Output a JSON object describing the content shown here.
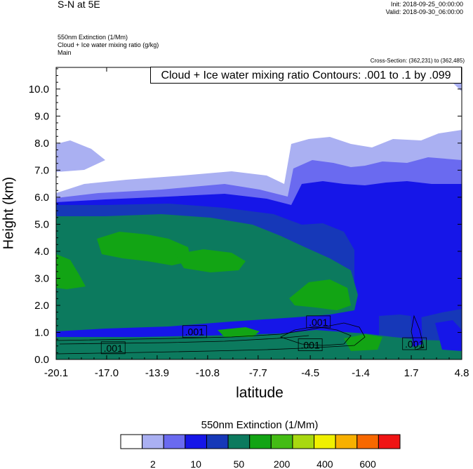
{
  "header": {
    "title": "S-N at 5E",
    "init": "Init: 2018-09-25_00:00:00",
    "valid": "Valid: 2018-09-30_06:00:00",
    "variables": [
      "550nm Extinction   (1/Mm)",
      "Cloud + Ice water mixing ratio   (g/kg)",
      "Main"
    ],
    "cross_section": "Cross-Section: (362,231) to (362,485)",
    "contour_title": "Cloud + Ice water mixing ratio Contours: .001 to .1 by .099"
  },
  "chart_data": {
    "type": "heatmap",
    "title": "S-N at 5E",
    "xlabel": "latitude",
    "ylabel": "Height (km)",
    "xlim": [
      -20.1,
      4.8
    ],
    "ylim": [
      0.0,
      10.8
    ],
    "x_ticks": [
      "-20.1",
      "-17.0",
      "-13.9",
      "-10.8",
      "-7.7",
      "-4.5",
      "-1.4",
      "1.7",
      "4.8"
    ],
    "x_tick_values": [
      -20.1,
      -17.0,
      -13.9,
      -10.8,
      -7.7,
      -4.5,
      -1.4,
      1.7,
      4.8
    ],
    "y_ticks": [
      "0.0",
      "1.0",
      "2.0",
      "3.0",
      "4.0",
      "5.0",
      "6.0",
      "7.0",
      "8.0",
      "9.0",
      "10.0"
    ],
    "y_tick_values": [
      0,
      1,
      2,
      3,
      4,
      5,
      6,
      7,
      8,
      9,
      10
    ],
    "colorbar": {
      "title": "550nm Extinction  (1/Mm)",
      "colors": [
        "#ffffff",
        "#aab0f2",
        "#6a6af0",
        "#1616e8",
        "#1638b8",
        "#0c7a5e",
        "#12a414",
        "#44bc14",
        "#a8d810",
        "#f0f000",
        "#f8b000",
        "#f86800",
        "#f01414"
      ],
      "labels": [
        "2",
        "10",
        "50",
        "200",
        "400",
        "600"
      ]
    },
    "contour_labels": [
      ".001",
      ".001",
      ".001",
      ".001",
      ".001"
    ]
  }
}
